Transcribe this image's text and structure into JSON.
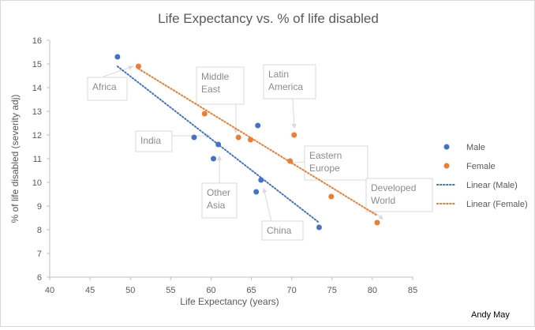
{
  "chart_data": {
    "type": "scatter",
    "title": "Life Expectancy vs. % of life disabled",
    "xlabel": "Life Expectancy (years)",
    "ylabel": "% of life disabled (severity adj)",
    "xlim": [
      40,
      85
    ],
    "ylim": [
      6,
      16
    ],
    "xticks": [
      "40",
      "45",
      "50",
      "55",
      "60",
      "65",
      "70",
      "75",
      "80",
      "85"
    ],
    "yticks": [
      "6",
      "7",
      "8",
      "9",
      "10",
      "11",
      "12",
      "13",
      "14",
      "15",
      "16"
    ],
    "grid": false,
    "legend_position": "right",
    "series": [
      {
        "name": "Male",
        "color": "#4472c4",
        "points": [
          {
            "x": 48.4,
            "y": 15.3
          },
          {
            "x": 57.9,
            "y": 11.9
          },
          {
            "x": 60.3,
            "y": 11.0
          },
          {
            "x": 60.9,
            "y": 11.6
          },
          {
            "x": 65.6,
            "y": 9.6
          },
          {
            "x": 65.8,
            "y": 12.4
          },
          {
            "x": 66.2,
            "y": 10.1
          },
          {
            "x": 73.4,
            "y": 8.1
          }
        ]
      },
      {
        "name": "Female",
        "color": "#ed7d31",
        "points": [
          {
            "x": 51.0,
            "y": 14.9
          },
          {
            "x": 59.2,
            "y": 12.9
          },
          {
            "x": 63.4,
            "y": 11.9
          },
          {
            "x": 64.9,
            "y": 11.8
          },
          {
            "x": 69.8,
            "y": 10.9
          },
          {
            "x": 70.3,
            "y": 12.0
          },
          {
            "x": 74.9,
            "y": 9.4
          },
          {
            "x": 80.6,
            "y": 8.3
          }
        ]
      }
    ],
    "trendlines": [
      {
        "name": "Linear (Male)",
        "color": "#4472c4",
        "from": {
          "x": 48.4,
          "y": 14.9
        },
        "to": {
          "x": 73.4,
          "y": 8.3
        }
      },
      {
        "name": "Linear (Female)",
        "color": "#ed7d31",
        "from": {
          "x": 51.0,
          "y": 14.8
        },
        "to": {
          "x": 80.6,
          "y": 8.6
        }
      }
    ],
    "annotations": [
      {
        "lines": [
          "Africa"
        ]
      },
      {
        "lines": [
          "Middle",
          "East"
        ]
      },
      {
        "lines": [
          "Latin",
          "America"
        ]
      },
      {
        "lines": [
          "India"
        ]
      },
      {
        "lines": [
          "Eastern",
          "Europe"
        ]
      },
      {
        "lines": [
          "Developed",
          "World"
        ]
      },
      {
        "lines": [
          "Other",
          "Asia"
        ]
      },
      {
        "lines": [
          "China"
        ]
      }
    ],
    "credit": "Andy May"
  }
}
